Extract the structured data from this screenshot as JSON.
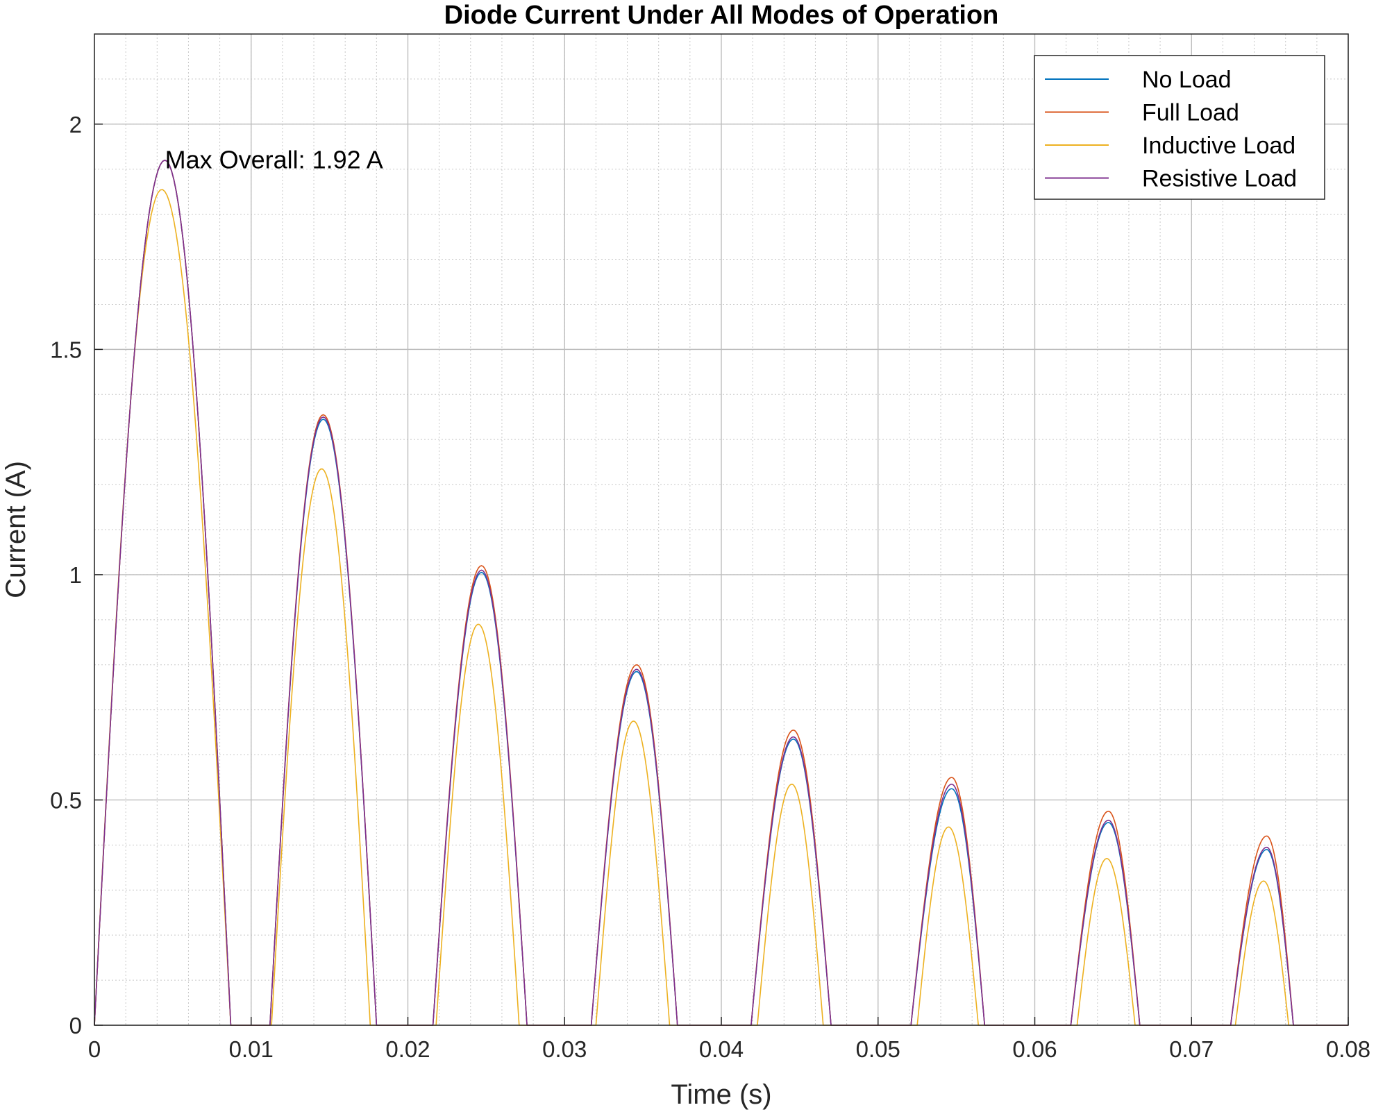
{
  "chart_data": {
    "type": "line",
    "title": "Diode Current Under All Modes of Operation",
    "xlabel": "Time (s)",
    "ylabel": "Current (A)",
    "xlim": [
      0,
      0.08
    ],
    "ylim": [
      0,
      2.2
    ],
    "xticks": [
      0,
      0.01,
      0.02,
      0.03,
      0.04,
      0.05,
      0.06,
      0.07,
      0.08
    ],
    "xtick_labels": [
      "0",
      "0.01",
      "0.02",
      "0.03",
      "0.04",
      "0.05",
      "0.06",
      "0.07",
      "0.08"
    ],
    "yticks": [
      0,
      0.5,
      1,
      1.5,
      2
    ],
    "ytick_labels": [
      "0",
      "0.5",
      "1",
      "1.5",
      "2"
    ],
    "grid": true,
    "minor_grid": true,
    "legend_position": "top-right",
    "annotation": {
      "text": "Max Overall: 1.92 A",
      "x": 0.0045,
      "y": 1.92
    },
    "series": [
      {
        "name": "No Load",
        "color": "#0072BD",
        "pulses": [
          {
            "start": 0.0,
            "peak_t": 0.0045,
            "peak": 1.92,
            "end": 0.0087
          },
          {
            "start": 0.0112,
            "peak_t": 0.0146,
            "peak": 1.345,
            "end": 0.018
          },
          {
            "start": 0.0216,
            "peak_t": 0.0247,
            "peak": 1.005,
            "end": 0.0276
          },
          {
            "start": 0.0317,
            "peak_t": 0.0346,
            "peak": 0.785,
            "end": 0.0372
          },
          {
            "start": 0.0419,
            "peak_t": 0.0446,
            "peak": 0.635,
            "end": 0.047
          },
          {
            "start": 0.0521,
            "peak_t": 0.0547,
            "peak": 0.525,
            "end": 0.0568
          },
          {
            "start": 0.0623,
            "peak_t": 0.0647,
            "peak": 0.45,
            "end": 0.0667
          },
          {
            "start": 0.0725,
            "peak_t": 0.0748,
            "peak": 0.39,
            "end": 0.0765
          }
        ]
      },
      {
        "name": "Full Load",
        "color": "#D95319",
        "pulses": [
          {
            "start": 0.0,
            "peak_t": 0.0045,
            "peak": 1.92,
            "end": 0.0087
          },
          {
            "start": 0.0112,
            "peak_t": 0.0146,
            "peak": 1.355,
            "end": 0.018
          },
          {
            "start": 0.0216,
            "peak_t": 0.0247,
            "peak": 1.02,
            "end": 0.0276
          },
          {
            "start": 0.0317,
            "peak_t": 0.0346,
            "peak": 0.8,
            "end": 0.0372
          },
          {
            "start": 0.0419,
            "peak_t": 0.0446,
            "peak": 0.655,
            "end": 0.047
          },
          {
            "start": 0.0521,
            "peak_t": 0.0547,
            "peak": 0.55,
            "end": 0.0568
          },
          {
            "start": 0.0623,
            "peak_t": 0.0647,
            "peak": 0.475,
            "end": 0.0667
          },
          {
            "start": 0.0725,
            "peak_t": 0.0748,
            "peak": 0.42,
            "end": 0.0765
          }
        ]
      },
      {
        "name": "Inductive Load",
        "color": "#EDB120",
        "pulses": [
          {
            "start": 0.0,
            "peak_t": 0.0043,
            "peak": 1.855,
            "end": 0.0087
          },
          {
            "start": 0.0113,
            "peak_t": 0.0145,
            "peak": 1.235,
            "end": 0.0176
          },
          {
            "start": 0.0218,
            "peak_t": 0.0245,
            "peak": 0.89,
            "end": 0.0271
          },
          {
            "start": 0.032,
            "peak_t": 0.0344,
            "peak": 0.675,
            "end": 0.0367
          },
          {
            "start": 0.0423,
            "peak_t": 0.0445,
            "peak": 0.535,
            "end": 0.0465
          },
          {
            "start": 0.0525,
            "peak_t": 0.0545,
            "peak": 0.44,
            "end": 0.0564
          },
          {
            "start": 0.0627,
            "peak_t": 0.0646,
            "peak": 0.37,
            "end": 0.0664
          },
          {
            "start": 0.0728,
            "peak_t": 0.0746,
            "peak": 0.32,
            "end": 0.0762
          }
        ]
      },
      {
        "name": "Resistive Load",
        "color": "#7E2F8E",
        "pulses": [
          {
            "start": 0.0,
            "peak_t": 0.0045,
            "peak": 1.92,
            "end": 0.0087
          },
          {
            "start": 0.0112,
            "peak_t": 0.0146,
            "peak": 1.35,
            "end": 0.018
          },
          {
            "start": 0.0216,
            "peak_t": 0.0247,
            "peak": 1.01,
            "end": 0.0276
          },
          {
            "start": 0.0317,
            "peak_t": 0.0346,
            "peak": 0.79,
            "end": 0.0372
          },
          {
            "start": 0.0419,
            "peak_t": 0.0446,
            "peak": 0.64,
            "end": 0.047
          },
          {
            "start": 0.0521,
            "peak_t": 0.0547,
            "peak": 0.535,
            "end": 0.0568
          },
          {
            "start": 0.0623,
            "peak_t": 0.0647,
            "peak": 0.455,
            "end": 0.0667
          },
          {
            "start": 0.0725,
            "peak_t": 0.0748,
            "peak": 0.395,
            "end": 0.0765
          }
        ]
      }
    ]
  }
}
